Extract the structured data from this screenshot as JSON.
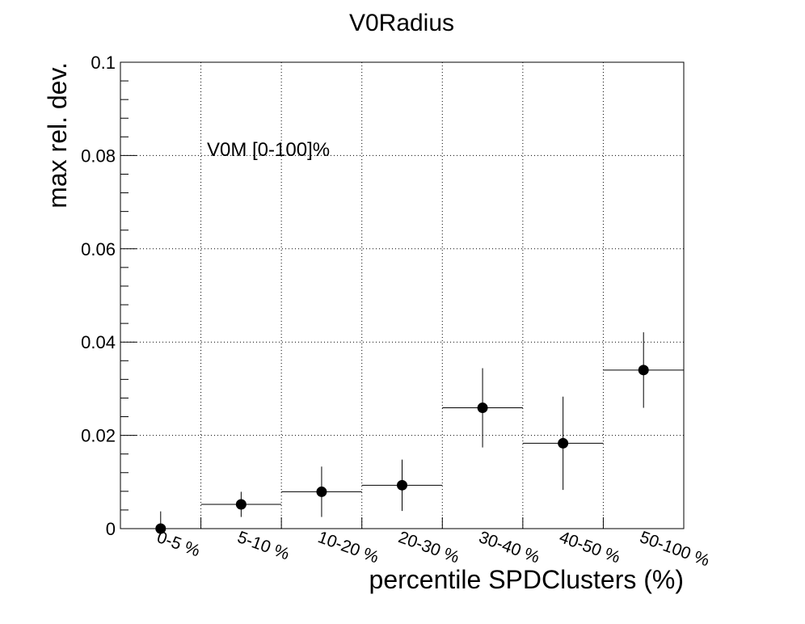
{
  "chart_data": {
    "type": "scatter",
    "title": "V0Radius",
    "xlabel": "percentile SPDClusters (%)",
    "ylabel": "max rel. dev.",
    "annotation": "V0M [0-100]%",
    "categories": [
      "0-5 %",
      "5-10 %",
      "10-20 %",
      "20-30 %",
      "30-40 %",
      "40-50 %",
      "50-100 %"
    ],
    "values": [
      0.0,
      0.0052,
      0.0079,
      0.0093,
      0.0259,
      0.0183,
      0.034
    ],
    "errors": [
      0.0037,
      0.0027,
      0.0054,
      0.0055,
      0.0085,
      0.01,
      0.0081
    ],
    "ylim": [
      0,
      0.1
    ],
    "yticks": [
      0,
      0.02,
      0.04,
      0.06,
      0.08,
      0.1
    ],
    "ytick_labels": [
      "0",
      "0.02",
      "0.04",
      "0.06",
      "0.08",
      "0.1"
    ],
    "grid": true,
    "marker_color": "#000000"
  }
}
